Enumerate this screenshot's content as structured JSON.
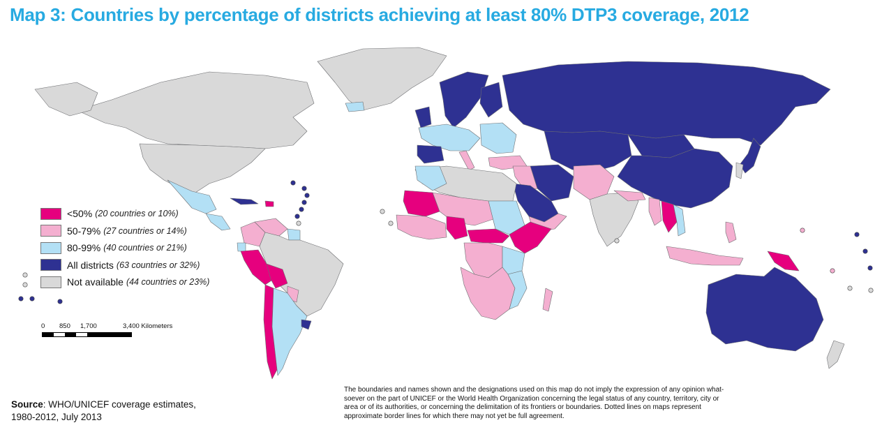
{
  "title": "Map 3: Countries by percentage of districts achieving  at least 80% DTP3 coverage, 2012",
  "colors": {
    "lt50": "#e6007e",
    "c50_79": "#f4afd0",
    "c80_99": "#b3e0f5",
    "all": "#2e3192",
    "na": "#d9d9d9",
    "ocean": "#ffffff",
    "border": "#6d6e71",
    "title": "#27aae1"
  },
  "legend": [
    {
      "key": "lt50",
      "label": "<50%",
      "sub": "(20 countries or 10%)"
    },
    {
      "key": "c50_79",
      "label": "50-79%",
      "sub": "(27 countries or 14%)"
    },
    {
      "key": "c80_99",
      "label": "80-99%",
      "sub": "(40 countries or 21%)"
    },
    {
      "key": "all",
      "label": "All districts",
      "sub": "(63 countries or 32%)"
    },
    {
      "key": "na",
      "label": "Not available",
      "sub": "(44 countries or 23%)"
    }
  ],
  "scale": {
    "labels": [
      "0",
      "850",
      "1,700",
      "3,400 Kilometers"
    ]
  },
  "source": {
    "label": "Source",
    "text": ": WHO/UNICEF coverage estimates,",
    "line2": "1980-2012, July 2013"
  },
  "disclaimer": "The boundaries and names shown and the designations used on this map do not imply the expression of any opinion what-soever on the part of UNICEF or the World Health Organization concerning the legal status of any country, territory, city or area or of its authorities, or concerning the delimitation of its frontiers or boundaries. Dotted lines on maps represent approximate border lines for which there may not yet be full agreement."
}
